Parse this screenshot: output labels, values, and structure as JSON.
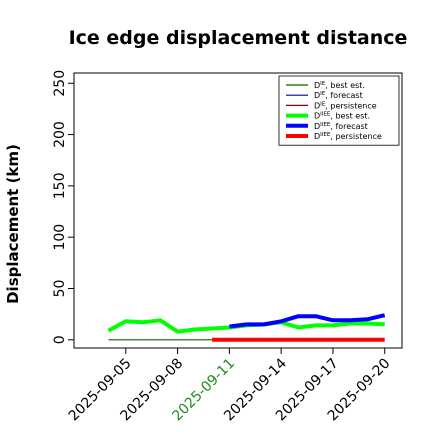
{
  "chart_data": {
    "type": "line",
    "title": "Ice edge displacement distance",
    "ylabel": "Displacement (km)",
    "xlabel": "",
    "ylim": [
      -8,
      260
    ],
    "yticks": [
      0,
      50,
      100,
      150,
      200,
      250
    ],
    "xlim": [
      "2025-09-02",
      "2025-09-21"
    ],
    "xticks": [
      {
        "date": "2025-09-05",
        "label": "2025-09-05",
        "color": "#000000"
      },
      {
        "date": "2025-09-08",
        "label": "2025-09-08",
        "color": "#000000"
      },
      {
        "date": "2025-09-11",
        "label": "2025-09-11",
        "color": "#228b22"
      },
      {
        "date": "2025-09-14",
        "label": "2025-09-14",
        "color": "#000000"
      },
      {
        "date": "2025-09-17",
        "label": "2025-09-17",
        "color": "#000000"
      },
      {
        "date": "2025-09-20",
        "label": "2025-09-20",
        "color": "#000000"
      }
    ],
    "grid": false,
    "legend_position": "top-right",
    "series": [
      {
        "name": "D^IE, best est.",
        "base": "D",
        "sup": "IE",
        "suffix": ", best est.",
        "color": "#006400",
        "width": 1.2,
        "x": [
          "2025-09-04",
          "2025-09-05",
          "2025-09-06",
          "2025-09-07",
          "2025-09-08",
          "2025-09-09",
          "2025-09-10"
        ],
        "y": [
          0,
          0,
          0,
          0,
          0,
          0,
          0
        ]
      },
      {
        "name": "D^IE, forecast",
        "base": "D",
        "sup": "IE",
        "suffix": ", forecast",
        "color": "#00008b",
        "width": 1.2,
        "x": [],
        "y": []
      },
      {
        "name": "D^IE, persistence",
        "base": "D",
        "sup": "IE",
        "suffix": ", persistence",
        "color": "#8b0000",
        "width": 1.2,
        "x": [],
        "y": []
      },
      {
        "name": "D^IIEE, best est.",
        "base": "D",
        "sup": "IIEE",
        "suffix": ", best est.",
        "color": "#00ff00",
        "width": 4,
        "x": [
          "2025-09-04",
          "2025-09-05",
          "2025-09-06",
          "2025-09-07",
          "2025-09-08",
          "2025-09-09",
          "2025-09-10",
          "2025-09-11",
          "2025-09-12",
          "2025-09-13",
          "2025-09-14",
          "2025-09-15",
          "2025-09-16",
          "2025-09-17",
          "2025-09-18",
          "2025-09-19",
          "2025-09-20"
        ],
        "y": [
          9,
          18,
          17,
          19,
          8,
          10,
          11,
          12,
          14,
          15,
          17,
          12,
          14,
          14,
          16,
          16,
          15
        ]
      },
      {
        "name": "D^IIEE, forecast",
        "base": "D",
        "sup": "IIEE",
        "suffix": ", forecast",
        "color": "#0000ff",
        "width": 4,
        "x": [
          "2025-09-11",
          "2025-09-12",
          "2025-09-13",
          "2025-09-14",
          "2025-09-15",
          "2025-09-16",
          "2025-09-17",
          "2025-09-18",
          "2025-09-19",
          "2025-09-20"
        ],
        "y": [
          13,
          15,
          15,
          18,
          23,
          23,
          19,
          19,
          20,
          24
        ]
      },
      {
        "name": "D^IIEE, persistence",
        "base": "D",
        "sup": "IIEE",
        "suffix": ", persistence",
        "color": "#ff0000",
        "width": 4,
        "x": [
          "2025-09-10",
          "2025-09-11",
          "2025-09-12",
          "2025-09-13",
          "2025-09-14",
          "2025-09-15",
          "2025-09-16",
          "2025-09-17",
          "2025-09-18",
          "2025-09-19",
          "2025-09-20"
        ],
        "y": [
          0,
          0,
          0,
          0,
          0,
          0,
          0,
          0,
          0,
          0,
          0
        ]
      }
    ]
  }
}
